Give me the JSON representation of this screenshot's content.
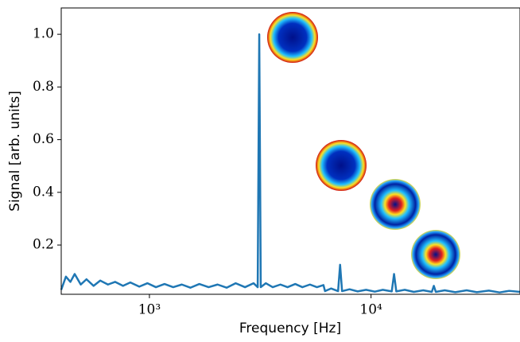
{
  "chart_data": {
    "type": "line",
    "xlabel": "Frequency [Hz]",
    "ylabel": "Signal [arb. units]",
    "log_x": true,
    "color": "#1f77b4",
    "x": [
      400,
      420,
      440,
      460,
      490,
      520,
      560,
      600,
      650,
      700,
      760,
      820,
      900,
      980,
      1070,
      1170,
      1280,
      1400,
      1530,
      1680,
      1850,
      2030,
      2230,
      2450,
      2700,
      2950,
      3080,
      3130,
      3180,
      3350,
      3600,
      3900,
      4200,
      4550,
      4900,
      5300,
      5700,
      6100,
      6200,
      6600,
      7100,
      7250,
      7400,
      8000,
      8700,
      9500,
      10400,
      11300,
      12400,
      12700,
      13000,
      14200,
      15600,
      17200,
      18800,
      19200,
      19600,
      21500,
      24000,
      27000,
      30000,
      34000,
      38000,
      42000,
      47000
    ],
    "values": [
      0.03,
      0.08,
      0.06,
      0.09,
      0.05,
      0.07,
      0.045,
      0.065,
      0.05,
      0.06,
      0.045,
      0.058,
      0.042,
      0.055,
      0.04,
      0.052,
      0.04,
      0.05,
      0.038,
      0.052,
      0.04,
      0.05,
      0.038,
      0.055,
      0.04,
      0.055,
      0.04,
      1.0,
      0.04,
      0.055,
      0.04,
      0.05,
      0.04,
      0.052,
      0.04,
      0.05,
      0.04,
      0.048,
      0.025,
      0.035,
      0.025,
      0.125,
      0.025,
      0.032,
      0.024,
      0.03,
      0.023,
      0.03,
      0.024,
      0.09,
      0.024,
      0.03,
      0.022,
      0.028,
      0.022,
      0.045,
      0.022,
      0.028,
      0.021,
      0.028,
      0.021,
      0.027,
      0.02,
      0.026,
      0.022
    ],
    "xlim": [
      400,
      47000
    ],
    "ylim": [
      0.013,
      1.1
    ],
    "xticks": [
      {
        "value": 1000,
        "label": "10³"
      },
      {
        "value": 10000,
        "label": "10⁴"
      }
    ],
    "yticks": [
      0.2,
      0.4,
      0.6,
      0.8,
      {
        "value": 1,
        "label": "1.0"
      }
    ]
  }
}
